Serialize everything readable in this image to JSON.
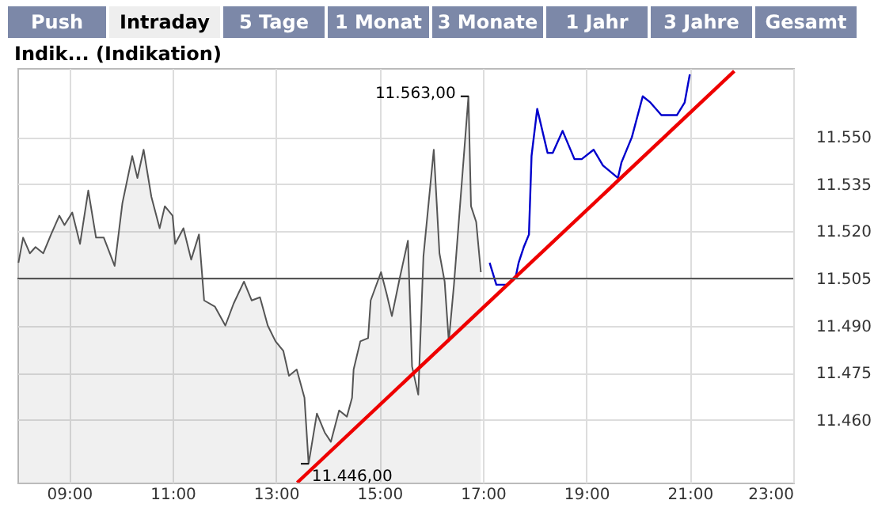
{
  "chart_data": {
    "type": "area",
    "title": "Indik... (Indikation)",
    "annotations": [
      "Push",
      "Intraday",
      "5 Tage",
      "1 Monat",
      "3 Monate",
      "1 Jahr",
      "3 Jahre",
      "Gesamt",
      {
        "text": "11.563,00",
        "x": 16.72,
        "y": 11563
      },
      {
        "text": "11.446,00",
        "x": 13.63,
        "y": 11446
      }
    ],
    "xlim": [
      8,
      23
    ],
    "ylim": [
      11440,
      11572
    ],
    "xticks": [
      {
        "value": 9,
        "label": "09:00"
      },
      {
        "value": 11,
        "label": "11:00"
      },
      {
        "value": 13,
        "label": "13:00"
      },
      {
        "value": 15,
        "label": "15:00"
      },
      {
        "value": 17,
        "label": "17:00"
      },
      {
        "value": 19,
        "label": "19:00"
      },
      {
        "value": 21,
        "label": "21:00"
      },
      {
        "value": 23,
        "label": "23:00"
      }
    ],
    "yticks": [
      {
        "value": 11460,
        "label": "11.460"
      },
      {
        "value": 11475,
        "label": "11.475"
      },
      {
        "value": 11490,
        "label": "11.490"
      },
      {
        "value": 11505,
        "label": "11.505"
      },
      {
        "value": 11520,
        "label": "11.520"
      },
      {
        "value": 11535,
        "label": "11.535"
      },
      {
        "value": 11550,
        "label": "11.550"
      }
    ],
    "grid": true,
    "ref_lines": [
      {
        "axis": "y",
        "value": 11505,
        "color": "#555555"
      }
    ],
    "series": [
      {
        "color": "#555555",
        "x": [
          8.02,
          8.11,
          8.24,
          8.35,
          8.5,
          8.65,
          8.81,
          8.91,
          9.06,
          9.21,
          9.37,
          9.52,
          9.67,
          9.88,
          10.03,
          10.22,
          10.32,
          10.44,
          10.59,
          10.75,
          10.85,
          11.0,
          11.05,
          11.21,
          11.36,
          11.51,
          11.61,
          11.82,
          12.02,
          12.18,
          12.38,
          12.53,
          12.69,
          12.84,
          12.99,
          13.14,
          13.25,
          13.4,
          13.55,
          13.63,
          13.79,
          13.94,
          14.06,
          14.22,
          14.37,
          14.47,
          14.5,
          14.63,
          14.78,
          14.83,
          15.03,
          15.14,
          15.24,
          15.39,
          15.55,
          15.63,
          15.75,
          15.85,
          16.05,
          16.16,
          16.26,
          16.34,
          16.44,
          16.51,
          16.72,
          16.77,
          16.87,
          16.96
        ],
        "values": [
          11510,
          11518,
          11513,
          11515,
          11513,
          11519,
          11525,
          11522,
          11526,
          11516,
          11533,
          11518,
          11518,
          11509,
          11529,
          11544,
          11537,
          11546,
          11531,
          11521,
          11528,
          11525,
          11516,
          11521,
          11511,
          11519,
          11498,
          11496,
          11490,
          11497,
          11504,
          11498,
          11499,
          11490,
          11485,
          11482,
          11474,
          11476,
          11467,
          11446,
          11462,
          11456,
          11453,
          11463,
          11461,
          11467,
          11476,
          11485,
          11486,
          11498,
          11507,
          11500,
          11493,
          11505,
          11517,
          11477,
          11468,
          11512,
          11546,
          11513,
          11504,
          11485,
          11503,
          11518,
          11563,
          11528,
          11523,
          11507
        ]
      },
      {
        "type": "line",
        "color": "#0000cc",
        "x": [
          17.13,
          17.26,
          17.48,
          17.64,
          17.69,
          17.79,
          17.89,
          17.94,
          18.05,
          18.25,
          18.35,
          18.54,
          18.77,
          18.91,
          19.14,
          19.32,
          19.61,
          19.68,
          19.88,
          20.09,
          20.24,
          20.45,
          20.75,
          20.9,
          21.0
        ],
        "values": [
          11510,
          11503,
          11503,
          11506,
          11510,
          11515,
          11519,
          11544,
          11559,
          11545,
          11545,
          11552,
          11543,
          11543,
          11546,
          11541,
          11537,
          11542,
          11550,
          11563,
          11561,
          11557,
          11557,
          11561,
          11570
        ]
      },
      {
        "type": "line",
        "color": "#ee0000",
        "x": [
          13.41,
          21.86
        ],
        "values": [
          11440,
          11571
        ]
      }
    ]
  }
}
